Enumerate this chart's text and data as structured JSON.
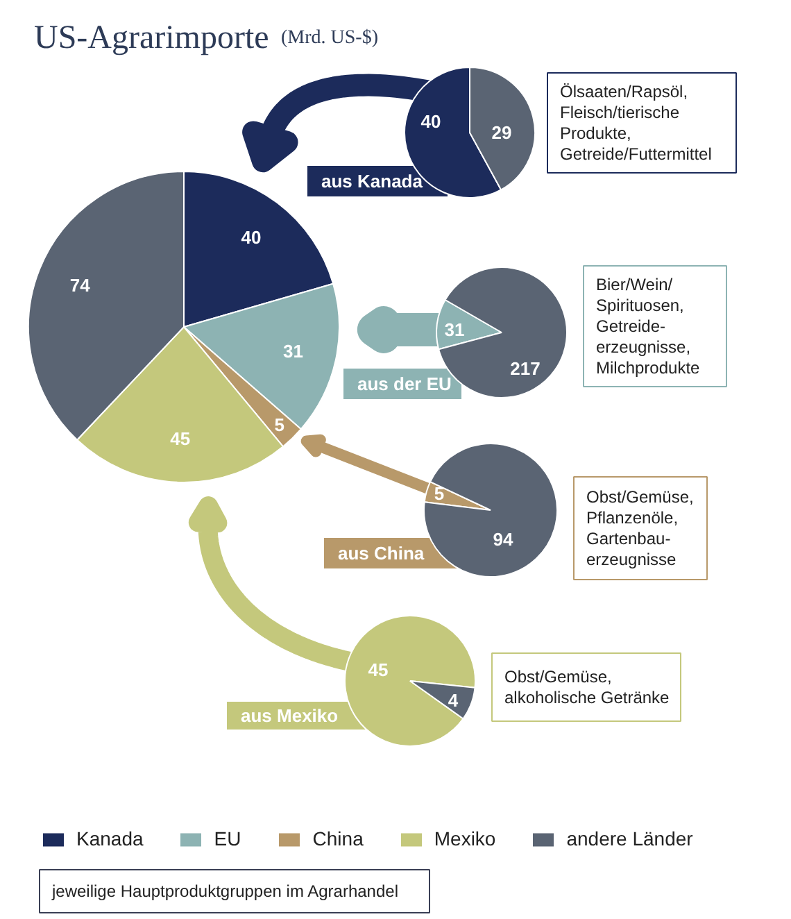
{
  "chart_data": [
    {
      "type": "pie",
      "title": "US-Agrarimporte",
      "subtitle": "(Mrd. US-$)",
      "categories": [
        "Kanada",
        "EU",
        "China",
        "Mexiko",
        "andere Länder"
      ],
      "values": [
        40,
        31,
        5,
        45,
        74
      ],
      "colors": [
        "#1c2b5b",
        "#8db3b3",
        "#b8996a",
        "#c4c87c",
        "#5a6473"
      ],
      "data_labels": true,
      "legend": "bottom",
      "annotations": [
        "jeweilige Hauptproduktgruppen im Agrarhandel"
      ]
    },
    {
      "type": "pie",
      "title": "aus Kanada",
      "categories": [
        null,
        null
      ],
      "values": [
        40,
        29
      ],
      "colors": [
        "#1c2b5b",
        "#5a6473"
      ],
      "data_labels": true,
      "annotations": [
        "Ölsaaten/Rapsöl,\nFleisch/tierische\nProdukte,\nGetreide/Futtermittel"
      ]
    },
    {
      "type": "pie",
      "title": "aus der EU",
      "categories": [
        null,
        null
      ],
      "values": [
        31,
        217
      ],
      "colors": [
        "#8db3b3",
        "#5a6473"
      ],
      "data_labels": true,
      "annotations": [
        "Bier/Wein/\nSpirituosen,\nGetreide-\nerzeugnisse,\nMilchprodukte"
      ]
    },
    {
      "type": "pie",
      "title": "aus China",
      "categories": [
        null,
        null
      ],
      "values": [
        5,
        94
      ],
      "colors": [
        "#b8996a",
        "#5a6473"
      ],
      "data_labels": true,
      "annotations": [
        "Obst/Gemüse,\nPflanzenöle,\nGartenbau-\nerzeugnisse"
      ]
    },
    {
      "type": "pie",
      "title": "aus Mexiko",
      "categories": [
        null,
        null
      ],
      "values": [
        45,
        4
      ],
      "colors": [
        "#c4c87c",
        "#5a6473"
      ],
      "data_labels": true,
      "annotations": [
        "Obst/Gemüse,\nalkoholische Getränke"
      ]
    }
  ]
}
